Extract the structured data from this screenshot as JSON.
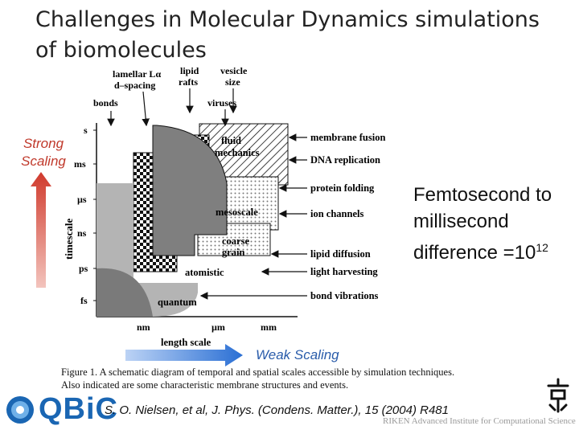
{
  "slide": {
    "title": "Challenges in Molecular Dynamics simulations of biomolecules",
    "strong_scaling": "Strong Scaling",
    "weak_scaling": "Weak Scaling",
    "femto_text": "Femtosecond to millisecond difference =10",
    "femto_exp": "12",
    "citation": "S. O. Nielsen, et al, J. Phys. (Condens. Matter.), 15 (2004) R481",
    "riken": "RIKEN Advanced Institute for Computational Science",
    "logo_text": "QBiC",
    "colors": {
      "strong_arrow": "#c0392b",
      "weak_arrow": "#2a6fd4",
      "logo": "#1a66b3"
    }
  },
  "figure": {
    "y_axis_label": "timescale",
    "x_axis_label": "length scale",
    "y_ticks": [
      "s",
      "ms",
      "µs",
      "ns",
      "ps",
      "fs"
    ],
    "x_ticks": [
      "nm",
      "µm",
      "mm"
    ],
    "top_labels": {
      "lamellar": "lamellar Lα",
      "dspacing": "d–spacing",
      "lipid": "lipid",
      "rafts": "rafts",
      "vesicle": "vesicle",
      "size": "size",
      "bonds": "bonds",
      "viruses": "viruses"
    },
    "regions": {
      "fluid": "fluid",
      "mechanics": "mechanics",
      "mesoscale": "mesoscale",
      "coarse": "coarse",
      "grain": "grain",
      "atomistic": "atomistic",
      "quantum": "quantum"
    },
    "right_labels": [
      "membrane fusion",
      "DNA replication",
      "protein folding",
      "ion channels",
      "lipid diffusion",
      "light harvesting",
      "bond vibrations"
    ],
    "caption_line1": "Figure 1. A schematic diagram of temporal and spatial scales accessible by simulation techniques.",
    "caption_line2": "Also indicated are some characteristic membrane structures and events."
  }
}
